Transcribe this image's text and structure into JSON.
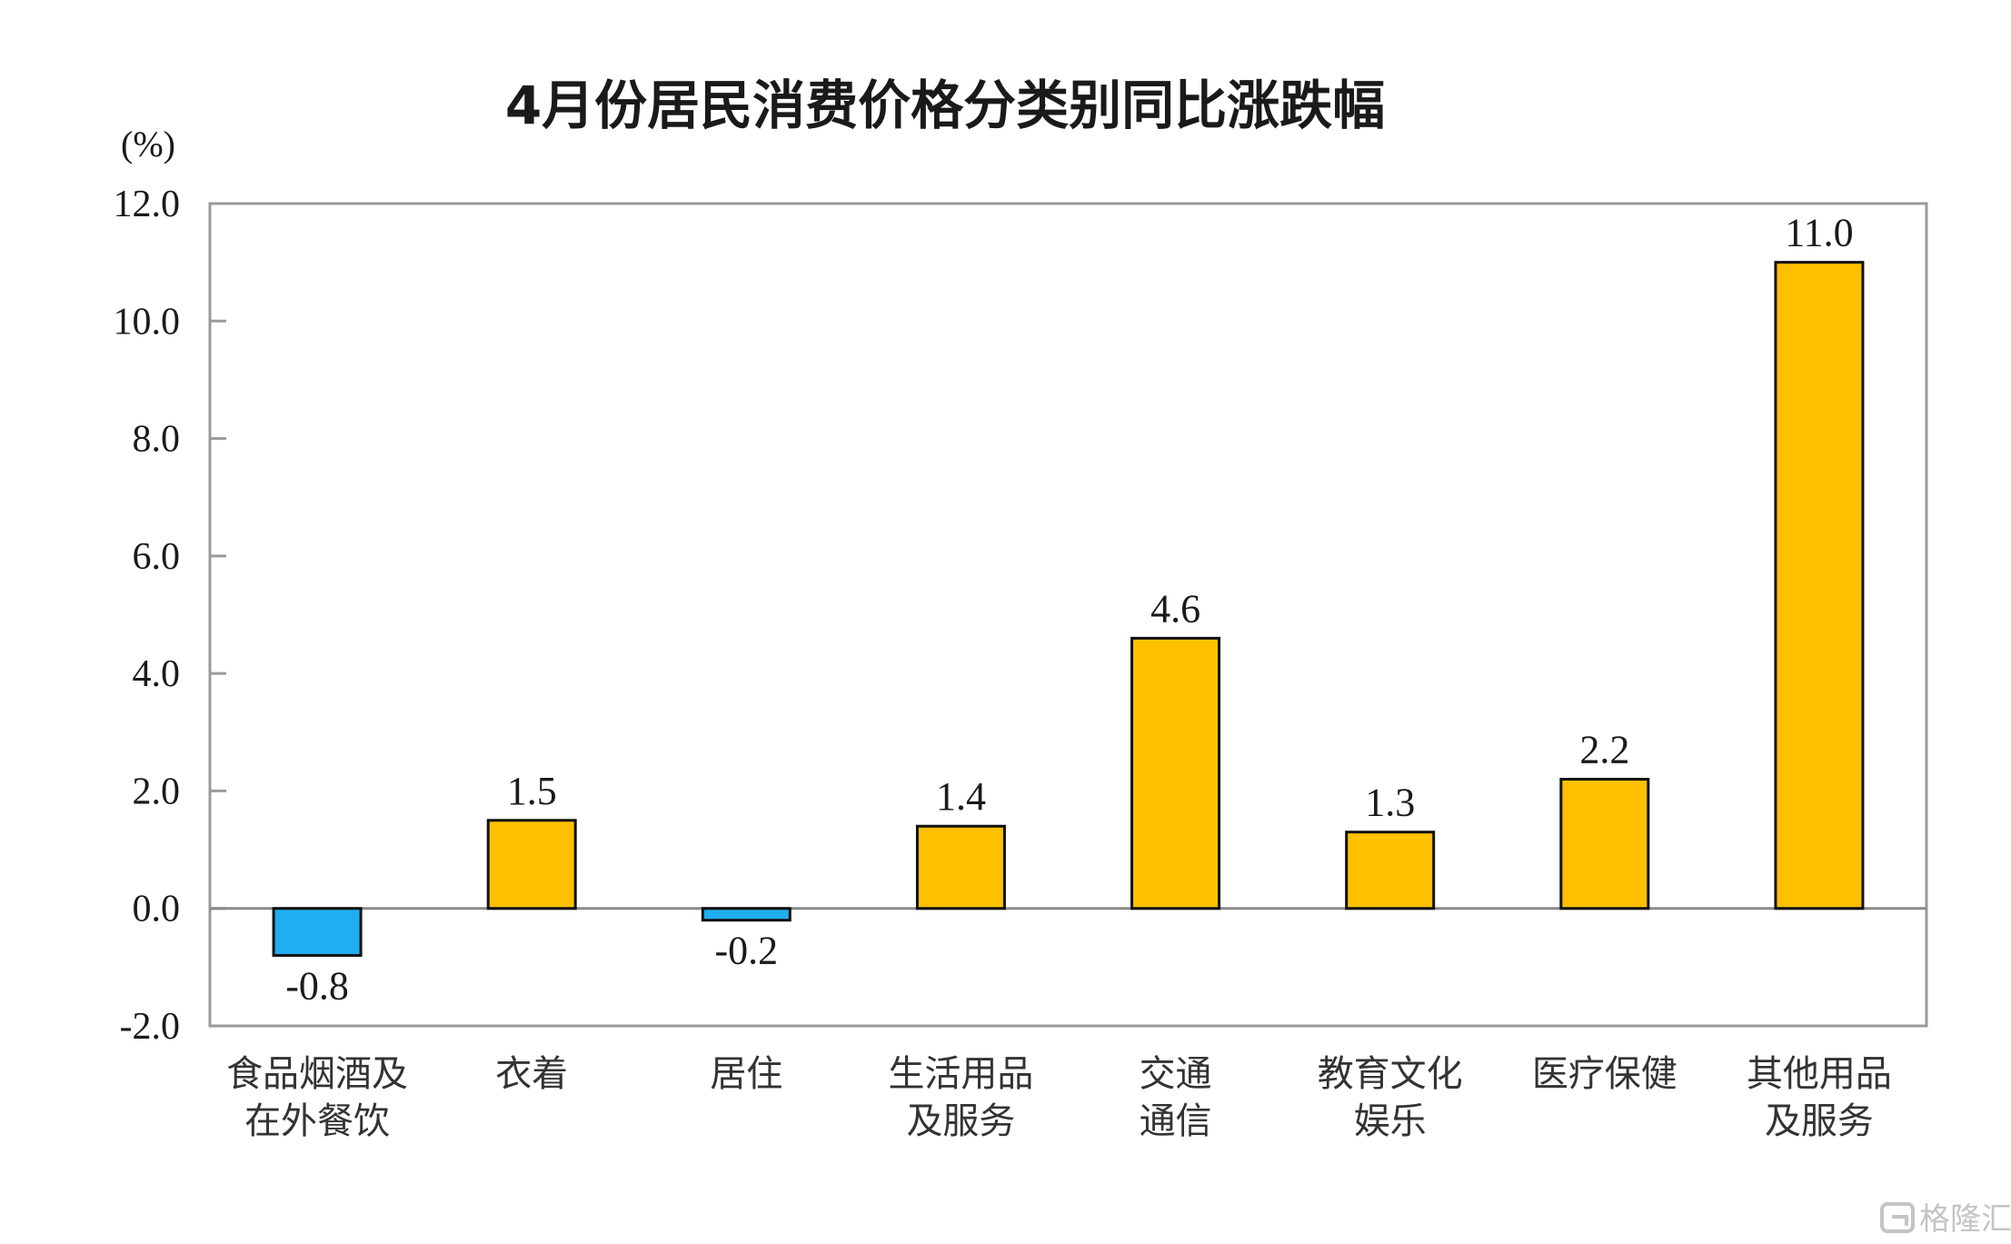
{
  "chart_data": {
    "type": "bar",
    "title": "4月份居民消费价格分类别同比涨跌幅",
    "ylabel": "(%)",
    "xlabel": "",
    "ylim": [
      -2.0,
      12.0
    ],
    "yticks": [
      "12.0",
      "10.0",
      "8.0",
      "6.0",
      "4.0",
      "2.0",
      "0.0",
      "-2.0"
    ],
    "ytick_values": [
      12,
      10,
      8,
      6,
      4,
      2,
      0,
      -2
    ],
    "categories": [
      [
        "食品烟酒及",
        "在外餐饮"
      ],
      [
        "衣着"
      ],
      [
        "居住"
      ],
      [
        "生活用品",
        "及服务"
      ],
      [
        "交通",
        "通信"
      ],
      [
        "教育文化",
        "娱乐"
      ],
      [
        "医疗保健"
      ],
      [
        "其他用品",
        "及服务"
      ]
    ],
    "values": [
      -0.8,
      1.5,
      -0.2,
      1.4,
      4.6,
      1.3,
      2.2,
      11.0
    ],
    "value_labels": [
      "-0.8",
      "1.5",
      "-0.2",
      "1.4",
      "4.6",
      "1.3",
      "2.2",
      "11.0"
    ],
    "colors": {
      "positive": "#FFC000",
      "negative": "#1FAEEF",
      "bar_outline": "#111111",
      "frame": "#9a9a9a",
      "zero_line": "#8a8a8a"
    },
    "grid": false,
    "legend": "none"
  },
  "watermark": {
    "text": "格隆汇",
    "icon": "glh-logo-icon"
  }
}
